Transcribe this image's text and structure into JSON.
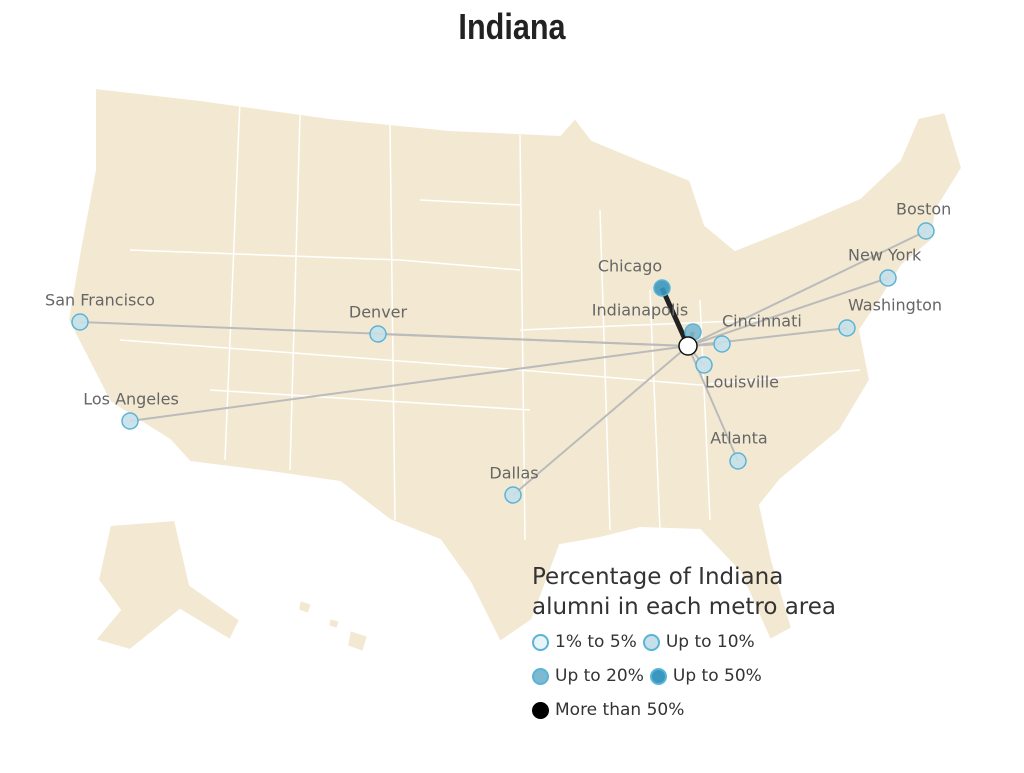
{
  "title": "Indiana",
  "cities": [
    {
      "name": "San Francisco",
      "color": "#c6e0ea"
    },
    {
      "name": "Denver",
      "color": "#c6e0ea"
    },
    {
      "name": "Los Angeles",
      "color": "#c6e0ea"
    },
    {
      "name": "Dallas",
      "color": "#c6e0ea"
    },
    {
      "name": "Chicago",
      "color": "#3a97bf"
    },
    {
      "name": "Indianapolis",
      "color": "#7db9d1"
    },
    {
      "name": "Cincinnati",
      "color": "#c6e0ea"
    },
    {
      "name": "Louisville",
      "color": "#c6e0ea"
    },
    {
      "name": "Atlanta",
      "color": "#c6e0ea"
    },
    {
      "name": "Washington",
      "color": "#c6e0ea"
    },
    {
      "name": "New York",
      "color": "#c6e0ea"
    },
    {
      "name": "Boston",
      "color": "#c6e0ea"
    }
  ],
  "legend": {
    "title": "Percentage of Indiana alumni in each metro area",
    "items": [
      {
        "label": "1% to 5%",
        "color": "#e8f4f8"
      },
      {
        "label": "Up to 10%",
        "color": "#c6e0ea"
      },
      {
        "label": "Up to 20%",
        "color": "#7db9d1"
      },
      {
        "label": "Up to 50%",
        "color": "#3a97bf"
      },
      {
        "label": "More than 50%",
        "color": "#000000"
      }
    ]
  }
}
